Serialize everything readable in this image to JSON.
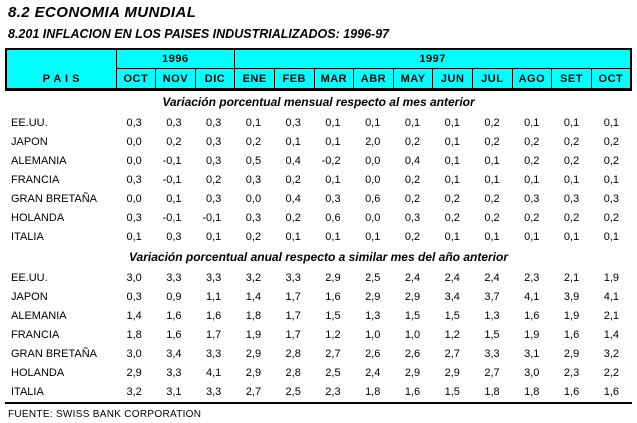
{
  "page": {
    "title": "8.2 ECONOMIA MUNDIAL",
    "subtitle": "8.201 INFLACION EN LOS PAISES INDUSTRIALIZADOS: 1996-97",
    "source": "FUENTE: SWISS BANK CORPORATION"
  },
  "colors": {
    "header_bg": "#00ffff",
    "border": "#000000",
    "text": "#000000"
  },
  "table": {
    "country_header": "P A I S",
    "year_groups": [
      {
        "label": "1996",
        "span": 3
      },
      {
        "label": "1997",
        "span": 10
      }
    ],
    "months": [
      "OCT",
      "NOV",
      "DIC",
      "ENE",
      "FEB",
      "MAR",
      "ABR",
      "MAY",
      "JUN",
      "JUL",
      "AGO",
      "SET",
      "OCT"
    ],
    "sections": [
      {
        "heading": "Variación porcentual mensual respecto al mes anterior",
        "rows": [
          {
            "country": "EE.UU.",
            "values": [
              "0,3",
              "0,3",
              "0,3",
              "0,1",
              "0,3",
              "0,1",
              "0,1",
              "0,1",
              "0,1",
              "0,2",
              "0,1",
              "0,1",
              "0,1"
            ]
          },
          {
            "country": "JAPON",
            "values": [
              "0,0",
              "0,2",
              "0,3",
              "0,2",
              "0,1",
              "0,1",
              "2,0",
              "0,2",
              "0,1",
              "0,2",
              "0,2",
              "0,2",
              "0,2"
            ]
          },
          {
            "country": "ALEMANIA",
            "values": [
              "0,0",
              "-0,1",
              "0,3",
              "0,5",
              "0,4",
              "-0,2",
              "0,0",
              "0,4",
              "0,1",
              "0,1",
              "0,2",
              "0,2",
              "0,2"
            ]
          },
          {
            "country": "FRANCIA",
            "values": [
              "0,3",
              "-0,1",
              "0,2",
              "0,3",
              "0,2",
              "0,1",
              "0,0",
              "0,2",
              "0,1",
              "0,1",
              "0,1",
              "0,1",
              "0,1"
            ]
          },
          {
            "country": "GRAN BRETAÑA",
            "values": [
              "0,0",
              "0,1",
              "0,3",
              "0,0",
              "0,4",
              "0,3",
              "0,6",
              "0,2",
              "0,2",
              "0,2",
              "0,3",
              "0,3",
              "0,3"
            ]
          },
          {
            "country": "HOLANDA",
            "values": [
              "0,3",
              "-0,1",
              "-0,1",
              "0,3",
              "0,2",
              "0,6",
              "0,0",
              "0,3",
              "0,2",
              "0,2",
              "0,2",
              "0,2",
              "0,2"
            ]
          },
          {
            "country": "ITALIA",
            "values": [
              "0,1",
              "0,3",
              "0,1",
              "0,2",
              "0,1",
              "0,1",
              "0,1",
              "0,2",
              "0,1",
              "0,1",
              "0,1",
              "0,1",
              "0,1"
            ]
          }
        ]
      },
      {
        "heading": "Variación porcentual anual respecto a similar mes del año anterior",
        "rows": [
          {
            "country": "EE.UU.",
            "values": [
              "3,0",
              "3,3",
              "3,3",
              "3,2",
              "3,3",
              "2,9",
              "2,5",
              "2,4",
              "2,4",
              "2,4",
              "2,3",
              "2,1",
              "1,9"
            ]
          },
          {
            "country": "JAPON",
            "values": [
              "0,3",
              "0,9",
              "1,1",
              "1,4",
              "1,7",
              "1,6",
              "2,9",
              "2,9",
              "3,4",
              "3,7",
              "4,1",
              "3,9",
              "4,1"
            ]
          },
          {
            "country": "ALEMANIA",
            "values": [
              "1,4",
              "1,6",
              "1,6",
              "1,8",
              "1,7",
              "1,5",
              "1,3",
              "1,5",
              "1,5",
              "1,3",
              "1,6",
              "1,9",
              "2,1"
            ]
          },
          {
            "country": "FRANCIA",
            "values": [
              "1,8",
              "1,6",
              "1,7",
              "1,9",
              "1,7",
              "1,2",
              "1,0",
              "1,0",
              "1,2",
              "1,5",
              "1,9",
              "1,6",
              "1,4"
            ]
          },
          {
            "country": "GRAN BRETAÑA",
            "values": [
              "3,0",
              "3,4",
              "3,3",
              "2,9",
              "2,8",
              "2,7",
              "2,6",
              "2,6",
              "2,7",
              "3,3",
              "3,1",
              "2,9",
              "3,2"
            ]
          },
          {
            "country": "HOLANDA",
            "values": [
              "2,9",
              "3,3",
              "4,1",
              "2,9",
              "2,8",
              "2,5",
              "2,4",
              "2,9",
              "2,9",
              "2,7",
              "3,0",
              "2,3",
              "2,2"
            ]
          },
          {
            "country": "ITALIA",
            "values": [
              "3,2",
              "3,1",
              "3,3",
              "2,7",
              "2,5",
              "2,3",
              "1,8",
              "1,6",
              "1,5",
              "1,8",
              "1,8",
              "1,6",
              "1,6"
            ]
          }
        ]
      }
    ]
  }
}
